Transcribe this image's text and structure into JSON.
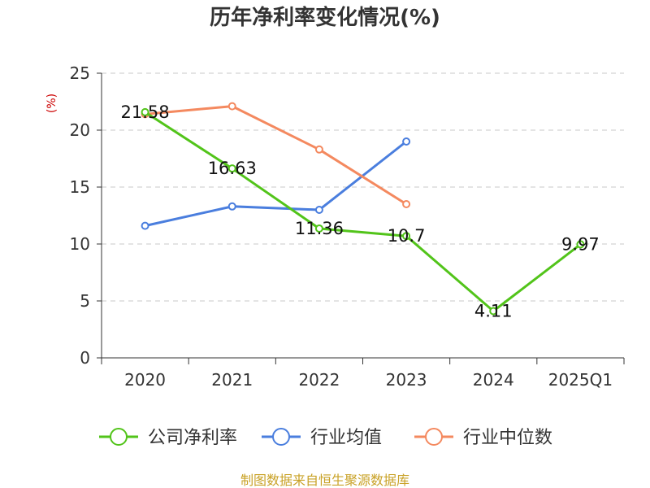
{
  "chart_data": {
    "type": "line",
    "title": "历年净利率变化情况(%)",
    "ylabel": "(%)",
    "xlabel": "",
    "categories": [
      "2020",
      "2021",
      "2022",
      "2023",
      "2024",
      "2025Q1"
    ],
    "ylim": [
      0,
      25
    ],
    "yticks": [
      0,
      5,
      10,
      15,
      20,
      25
    ],
    "grid": true,
    "legend_position": "bottom",
    "series": [
      {
        "name": "公司净利率",
        "color": "#52c41a",
        "values": [
          21.58,
          16.63,
          11.36,
          10.7,
          4.11,
          9.97
        ],
        "labels": [
          "21.58",
          "16.63",
          "11.36",
          "10.7",
          "4.11",
          "9.97"
        ]
      },
      {
        "name": "行业均值",
        "color": "#4a7ede",
        "values": [
          11.6,
          13.3,
          13.0,
          19.0,
          null,
          null
        ]
      },
      {
        "name": "行业中位数",
        "color": "#f4895f",
        "values": [
          21.4,
          22.1,
          18.3,
          13.5,
          null,
          null
        ]
      }
    ],
    "source": "制图数据来自恒生聚源数据库"
  }
}
